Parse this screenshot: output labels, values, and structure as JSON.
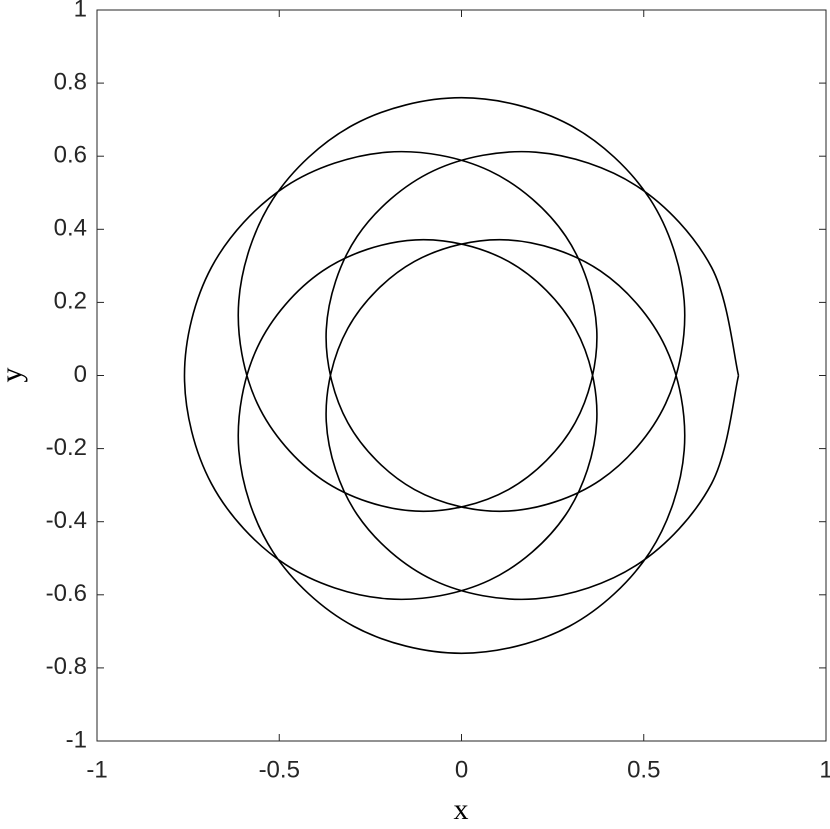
{
  "chart_data": {
    "type": "line",
    "x_label": "x",
    "y_label": "y",
    "xlim": [
      -1,
      1
    ],
    "ylim": [
      -1,
      1
    ],
    "xticks": [
      -1,
      -0.5,
      0,
      0.5,
      1
    ],
    "yticks": [
      -1,
      -0.8,
      -0.6,
      -0.4,
      -0.2,
      0,
      0.2,
      0.4,
      0.6,
      0.8,
      1
    ],
    "grid": false,
    "color": "#000000",
    "x": [
      0.76,
      0.686,
      0.483,
      0.204,
      -0.077,
      -0.286,
      -0.371,
      -0.312,
      -0.129,
      0.126,
      0.381,
      0.56,
      0.611,
      0.517,
      0.296,
      0,
      -0.296,
      -0.517,
      -0.611,
      -0.56,
      -0.381,
      -0.126,
      0.129,
      0.312,
      0.371,
      0.286,
      0.077,
      -0.204,
      -0.483,
      -0.686,
      -0.76,
      -0.686,
      -0.483,
      -0.204,
      0.077,
      0.286,
      0.371,
      0.312,
      0.129,
      -0.126,
      -0.381,
      -0.56,
      -0.611,
      -0.517,
      -0.296,
      0,
      0.296,
      0.517,
      0.611,
      0.56,
      0.381,
      0.126,
      -0.129,
      -0.312,
      -0.371,
      -0.286,
      -0.077,
      0.204,
      0.483,
      0.686,
      0.76
    ],
    "y": [
      0,
      0.296,
      0.517,
      0.611,
      0.56,
      0.381,
      0.126,
      -0.129,
      -0.312,
      -0.371,
      -0.286,
      -0.077,
      0.204,
      0.483,
      0.686,
      0.76,
      0.686,
      0.483,
      0.204,
      -0.077,
      -0.286,
      -0.371,
      -0.312,
      -0.129,
      0.126,
      0.381,
      0.56,
      0.611,
      0.517,
      0.296,
      0,
      -0.296,
      -0.517,
      -0.611,
      -0.56,
      -0.381,
      -0.126,
      0.129,
      0.312,
      0.371,
      0.286,
      0.077,
      -0.204,
      -0.483,
      -0.686,
      -0.76,
      -0.686,
      -0.483,
      -0.204,
      0.077,
      0.286,
      0.371,
      0.312,
      0.129,
      -0.126,
      -0.381,
      -0.56,
      -0.611,
      -0.517,
      -0.296,
      0
    ]
  }
}
